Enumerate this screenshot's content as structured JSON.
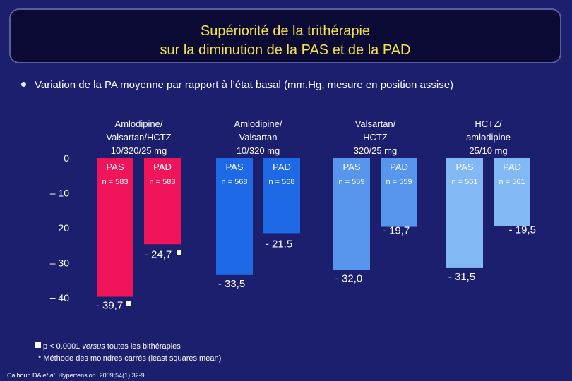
{
  "title": {
    "line1": "Supériorité de la trithérapie",
    "line2": "sur la diminution de la PAS et de la PAD"
  },
  "subtitle": "Variation de la PA moyenne par rapport à l’état basal (mm.Hg, mesure en position assise)",
  "footnotes": {
    "significance_prefix": "p < 0.0001 ",
    "significance_italic": "versus",
    "significance_suffix": " toutes les bithérapies",
    "method": "* Méthode des moindres carrés (least squares mean)",
    "citation_prefix": "Calhoun DA ",
    "citation_italic": "et al.",
    "citation_suffix": " Hypertension. 2009;54(1):32-9."
  },
  "chart_data": {
    "type": "bar",
    "title": "",
    "xlabel": "",
    "ylabel": "",
    "ylim": [
      -40,
      0
    ],
    "yticks": [
      0,
      -10,
      -20,
      -30,
      -40
    ],
    "ytick_labels": [
      "0",
      "– 10",
      "– 20",
      "– 30",
      "– 40"
    ],
    "groups": [
      {
        "label": [
          "Amlodipine/",
          "Valsartan/HCTZ",
          "10/320/25 mg"
        ],
        "color": "#f0145a",
        "bars": [
          {
            "series": "PAS",
            "n": "n = 583",
            "value": -39.7,
            "value_label": "- 39,7",
            "significant": true
          },
          {
            "series": "PAD",
            "n": "n = 583",
            "value": -24.7,
            "value_label": "- 24,7",
            "significant": true
          }
        ]
      },
      {
        "label": [
          "Amlodipine/",
          "Valsartan",
          "10/320 mg"
        ],
        "color": "#1e6ae6",
        "bars": [
          {
            "series": "PAS",
            "n": "n = 568",
            "value": -33.5,
            "value_label": "- 33,5",
            "significant": false
          },
          {
            "series": "PAD",
            "n": "n = 568",
            "value": -21.5,
            "value_label": "- 21,5",
            "significant": false
          }
        ]
      },
      {
        "label": [
          "Valsartan/",
          "HCTZ",
          "320/25 mg"
        ],
        "color": "#5896ee",
        "bars": [
          {
            "series": "PAS",
            "n": "n = 559",
            "value": -32.0,
            "value_label": "- 32,0",
            "significant": false
          },
          {
            "series": "PAD",
            "n": "n = 559",
            "value": -19.7,
            "value_label": "- 19,7",
            "significant": false
          }
        ]
      },
      {
        "label": [
          "HCTZ/",
          "amlodipine",
          "25/10 mg"
        ],
        "color": "#82b8f4",
        "bars": [
          {
            "series": "PAS",
            "n": "n = 561",
            "value": -31.5,
            "value_label": "- 31,5",
            "significant": false
          },
          {
            "series": "PAD",
            "n": "n = 561",
            "value": -19.5,
            "value_label": "- 19,5",
            "significant": false
          }
        ]
      }
    ]
  }
}
